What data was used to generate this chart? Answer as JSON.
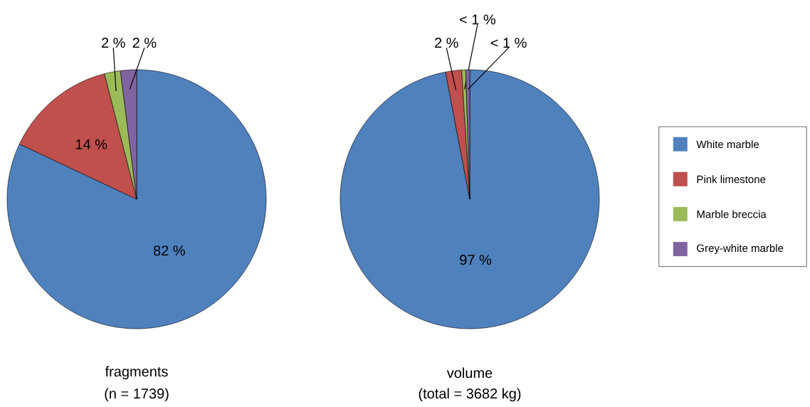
{
  "chart_data": [
    {
      "type": "pie",
      "title": "fragments",
      "subtitle": "(n = 1739)",
      "categories": [
        null,
        null,
        null,
        null
      ],
      "values": [
        82,
        14,
        2,
        2
      ],
      "value_labels": [
        "82 %",
        "14 %",
        "2 %",
        "2 %"
      ],
      "colors": [
        "#4f81bd",
        "#c0504d",
        "#9bbb59",
        "#8064a2"
      ]
    },
    {
      "type": "pie",
      "title": "volume",
      "subtitle": "(total = 3682 kg)",
      "categories": [
        "White marble",
        "Pink limestone",
        "Marble breccia",
        "Grey-white marble"
      ],
      "values": [
        97,
        2,
        0.5,
        0.5
      ],
      "value_labels": [
        "97 %",
        "2 %",
        "< 1 %",
        "< 1 %"
      ],
      "colors": [
        "#4f81bd",
        "#c0504d",
        "#9bbb59",
        "#8064a2"
      ],
      "legend": "right"
    }
  ]
}
